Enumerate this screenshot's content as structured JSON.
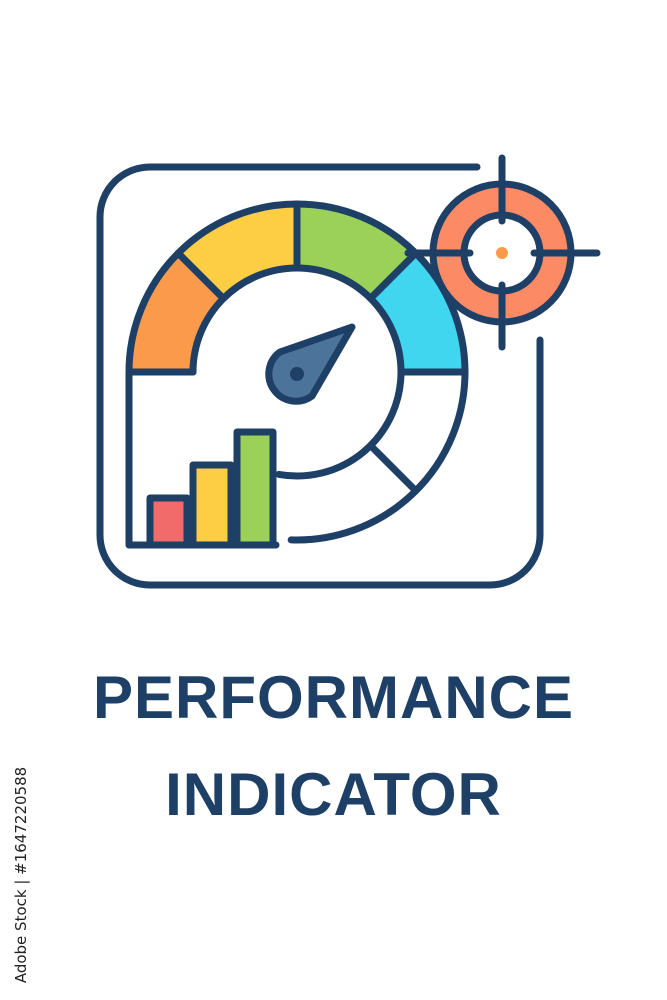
{
  "title": {
    "line1": "PERFORMANCE",
    "line2": "INDICATOR"
  },
  "credit": "Adobe Stock | #1647220588",
  "icon": {
    "name": "performance-gauge-icon",
    "colors": {
      "outline": "#1e3f66",
      "orange": "#fb9a4a",
      "yellow": "#fdcd44",
      "green": "#9bd158",
      "cyan": "#40d6f0",
      "red": "#f26b6b",
      "target": "#fc8a64",
      "needle": "#4c7399",
      "dot": "#fb9a4a"
    }
  }
}
